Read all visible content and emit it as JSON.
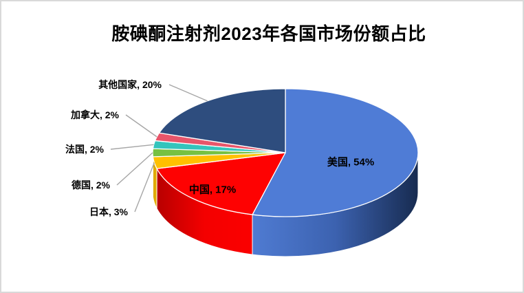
{
  "chart_data": {
    "type": "pie",
    "style": "3d",
    "title": "胺碘酮注射剂2023年各国市场份额占比",
    "unit": "%",
    "direction": "clockwise",
    "start_angle_deg": 0,
    "legend": "none",
    "background": "#FFFFFF",
    "frame_border_color": "#D9D9D9",
    "leader_line_color": "#A6A6A6",
    "label_text_color": "#000000",
    "slice_border_color": "#FFFFFF",
    "slices": [
      {
        "key": "usa",
        "label": "美国",
        "value": 54,
        "display": "美国, 54%",
        "color": "#4F7CD6",
        "side_gradient": [
          "#4F7BD2",
          "#3C62B0",
          "#172B50"
        ],
        "label_placement": "inside"
      },
      {
        "key": "china",
        "label": "中国",
        "value": 17,
        "display": "中国, 17%",
        "color": "#FE0202",
        "side_gradient": [
          "#B80000",
          "#F40000",
          "#FB0000"
        ],
        "label_placement": "inside"
      },
      {
        "key": "japan",
        "label": "日本",
        "value": 3,
        "display": "日本, 3%",
        "color": "#FFC000",
        "side_gradient": [
          "#D9A400",
          "#DFA900",
          "#E8B200"
        ],
        "label_placement": "outside"
      },
      {
        "key": "germany",
        "label": "德国",
        "value": 2,
        "display": "德国, 2%",
        "color": "#76C142",
        "side_gradient": [
          "#55912D",
          "#55912D",
          "#60A334"
        ],
        "label_placement": "outside"
      },
      {
        "key": "france",
        "label": "法国",
        "value": 2,
        "display": "法国, 2%",
        "color": "#34C4BC",
        "side_gradient": [
          "#279991",
          "#279991",
          "#279991"
        ],
        "label_placement": "outside"
      },
      {
        "key": "canada",
        "label": "加拿大",
        "value": 2,
        "display": "加拿大, 2%",
        "color": "#E8556A",
        "side_gradient": [
          "#B53F50",
          "#B53F50",
          "#B53F50"
        ],
        "label_placement": "outside"
      },
      {
        "key": "others",
        "label": "其他国家",
        "value": 20,
        "display": "其他国家, 20%",
        "color": "#2E4D7E",
        "side_gradient": [
          "#1E3557",
          "#1E3557",
          "#1E3557"
        ],
        "label_placement": "outside"
      }
    ]
  }
}
